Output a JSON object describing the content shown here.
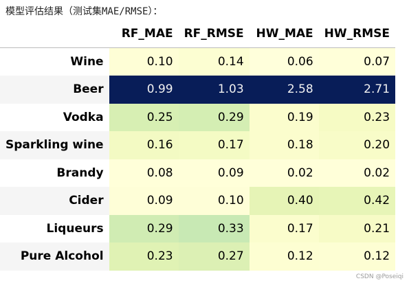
{
  "caption": "模型评估结果（测试集MAE/RMSE）：",
  "table": {
    "columns": [
      "RF_MAE",
      "RF_RMSE",
      "HW_MAE",
      "HW_RMSE"
    ],
    "rows": [
      {
        "label": "Wine",
        "cells": [
          {
            "text": "0.10",
            "bg": "#fefed6",
            "fg": "#000000"
          },
          {
            "text": "0.14",
            "bg": "#fcfed2",
            "fg": "#000000"
          },
          {
            "text": "0.06",
            "bg": "#ffffdb",
            "fg": "#000000"
          },
          {
            "text": "0.07",
            "bg": "#ffffd9",
            "fg": "#000000"
          }
        ]
      },
      {
        "label": "Beer",
        "cells": [
          {
            "text": "0.99",
            "bg": "#081d58",
            "fg": "#f1f1f1"
          },
          {
            "text": "1.03",
            "bg": "#081d58",
            "fg": "#f1f1f1"
          },
          {
            "text": "2.58",
            "bg": "#081d58",
            "fg": "#f1f1f1"
          },
          {
            "text": "2.71",
            "bg": "#081d58",
            "fg": "#f1f1f1"
          }
        ]
      },
      {
        "label": "Vodka",
        "cells": [
          {
            "text": "0.25",
            "bg": "#d7efb3",
            "fg": "#000000"
          },
          {
            "text": "0.29",
            "bg": "#d4eeb3",
            "fg": "#000000"
          },
          {
            "text": "0.19",
            "bg": "#fbfdcd",
            "fg": "#000000"
          },
          {
            "text": "0.23",
            "bg": "#f6fbc4",
            "fg": "#000000"
          }
        ]
      },
      {
        "label": "Sparkling wine",
        "cells": [
          {
            "text": "0.16",
            "bg": "#f3fac3",
            "fg": "#000000"
          },
          {
            "text": "0.17",
            "bg": "#f4fbc4",
            "fg": "#000000"
          },
          {
            "text": "0.18",
            "bg": "#fbfdcd",
            "fg": "#000000"
          },
          {
            "text": "0.20",
            "bg": "#f8fcc8",
            "fg": "#000000"
          }
        ]
      },
      {
        "label": "Brandy",
        "cells": [
          {
            "text": "0.08",
            "bg": "#ffffd9",
            "fg": "#000000"
          },
          {
            "text": "0.09",
            "bg": "#ffffd9",
            "fg": "#000000"
          },
          {
            "text": "0.02",
            "bg": "#ffffd9",
            "fg": "#000000"
          },
          {
            "text": "0.02",
            "bg": "#ffffd9",
            "fg": "#000000"
          }
        ]
      },
      {
        "label": "Cider",
        "cells": [
          {
            "text": "0.09",
            "bg": "#fefed7",
            "fg": "#000000"
          },
          {
            "text": "0.10",
            "bg": "#fefed7",
            "fg": "#000000"
          },
          {
            "text": "0.40",
            "bg": "#e6f4b6",
            "fg": "#000000"
          },
          {
            "text": "0.42",
            "bg": "#e7f5b7",
            "fg": "#000000"
          }
        ]
      },
      {
        "label": "Liqueurs",
        "cells": [
          {
            "text": "0.29",
            "bg": "#d0ecb3",
            "fg": "#000000"
          },
          {
            "text": "0.33",
            "bg": "#c8e9b4",
            "fg": "#000000"
          },
          {
            "text": "0.17",
            "bg": "#fbfdcd",
            "fg": "#000000"
          },
          {
            "text": "0.21",
            "bg": "#f7fbc6",
            "fg": "#000000"
          }
        ]
      },
      {
        "label": "Pure Alcohol",
        "cells": [
          {
            "text": "0.23",
            "bg": "#e0f2b4",
            "fg": "#000000"
          },
          {
            "text": "0.27",
            "bg": "#dcf0b4",
            "fg": "#000000"
          },
          {
            "text": "0.12",
            "bg": "#fdfed2",
            "fg": "#000000"
          },
          {
            "text": "0.12",
            "bg": "#fdfed3",
            "fg": "#000000"
          }
        ]
      }
    ]
  },
  "watermark": "CSDN @Poseiqi"
}
